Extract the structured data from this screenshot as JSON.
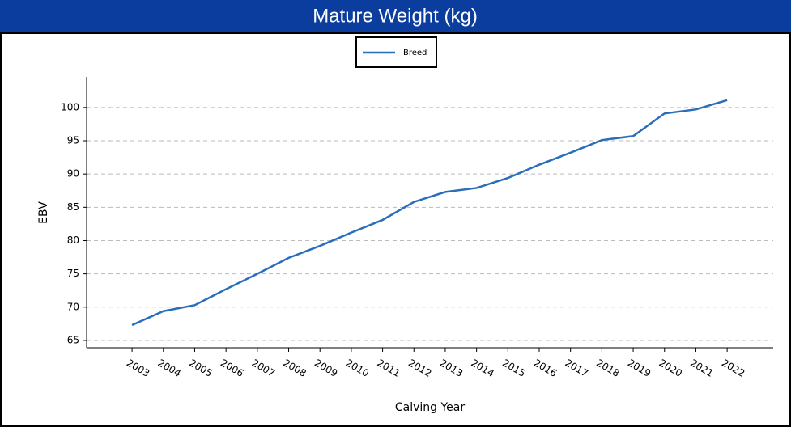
{
  "chart_data": {
    "type": "line",
    "title": "Mature Weight (kg)",
    "x_label": "Calving Year",
    "y_label": "EBV",
    "x": [
      2003,
      2004,
      2005,
      2006,
      2007,
      2008,
      2009,
      2010,
      2011,
      2012,
      2013,
      2014,
      2015,
      2016,
      2017,
      2018,
      2019,
      2020,
      2021,
      2022
    ],
    "series": [
      {
        "name": "Breed",
        "color": "#2a6ebb",
        "values": [
          67.3,
          69.4,
          70.3,
          72.7,
          75.0,
          77.4,
          79.2,
          81.2,
          83.1,
          85.8,
          87.3,
          87.9,
          89.4,
          91.4,
          93.2,
          95.1,
          95.7,
          99.1,
          99.7,
          101.1
        ]
      }
    ],
    "xlim": [
      2001.55,
      2023.47
    ],
    "xticks": [
      2003,
      2004,
      2005,
      2006,
      2007,
      2008,
      2009,
      2010,
      2011,
      2012,
      2013,
      2014,
      2015,
      2016,
      2017,
      2018,
      2019,
      2020,
      2021,
      2022
    ],
    "ylim": [
      63.9,
      104.6
    ],
    "yticks": [
      65,
      70,
      75,
      80,
      85,
      90,
      95,
      100
    ],
    "grid": true,
    "legend": "top"
  }
}
